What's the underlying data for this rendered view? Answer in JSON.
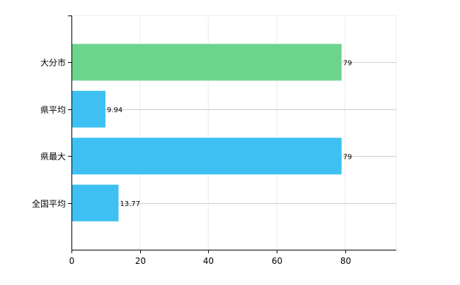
{
  "chart_data": {
    "type": "bar",
    "orientation": "horizontal",
    "categories": [
      "大分市",
      "県平均",
      "県最大",
      "全国平均"
    ],
    "values": [
      79,
      9.94,
      79,
      13.77
    ],
    "data_labels": [
      "79",
      "9.94",
      "79",
      "13.77"
    ],
    "bar_colors": [
      "#6dd48d",
      "#3ec1f2",
      "#3ec1f2",
      "#3ec1f2"
    ],
    "xlim": [
      0,
      95
    ],
    "x_ticks": [
      0,
      20,
      40,
      60,
      80
    ],
    "x_tick_labels": [
      "0",
      "20",
      "40",
      "60",
      "80"
    ],
    "grid": true,
    "legend": "none",
    "title": "",
    "xlabel": "",
    "ylabel": ""
  }
}
